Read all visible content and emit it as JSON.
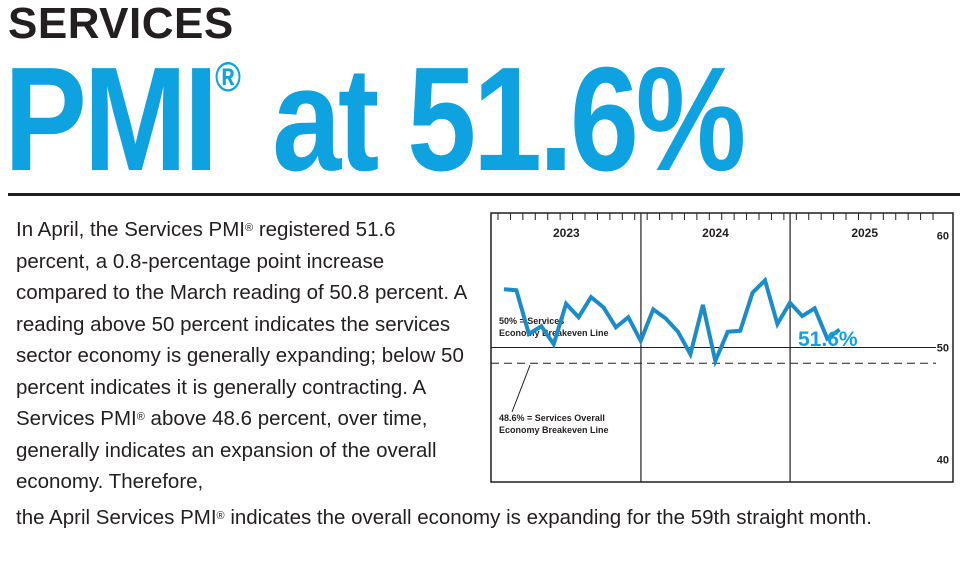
{
  "header": {
    "kicker": "SERVICES",
    "headline_main": "PMI",
    "headline_mark": "®",
    "headline_rest": " at 51.6%"
  },
  "body": {
    "p1_a": "In April, the Services PMI",
    "reg": "®",
    "p1_b": " registered 51.6 percent, a 0.8-percentage point increase compared to the March reading of 50.8 percent. A reading above 50 percent indicates the services sector economy is generally expanding; below 50 percent indicates it is generally contracting. A Services PMI",
    "p1_c": " above 48.6 percent, over time, generally indicates an expansion of the overall economy. Therefore,",
    "last_a": "the April Services PMI",
    "last_b": " indicates the overall economy is expanding for the 59th straight month."
  },
  "colors": {
    "accent": "#0ea2e0",
    "text": "#231f20"
  },
  "chart_data": {
    "type": "line",
    "x_start": "2023-01",
    "x_end": "2025-04",
    "year_labels": [
      "2023",
      "2024",
      "2025"
    ],
    "y_ticks": [
      "60",
      "50",
      "40"
    ],
    "ylim": [
      38,
      62
    ],
    "series": [
      {
        "values": [
          55.2,
          55.1,
          51.2,
          51.9,
          50.3,
          53.9,
          52.7,
          54.5,
          53.6,
          51.8,
          52.7,
          50.6,
          53.4,
          52.6,
          51.4,
          49.4,
          53.8,
          48.8,
          51.4,
          51.5,
          54.9,
          56.0,
          52.1,
          54.0,
          52.8,
          53.5,
          50.8,
          51.6
        ]
      }
    ],
    "reference_lines": [
      {
        "value": 50,
        "style": "solid",
        "label": "50% = Services Economy Breakeven Line",
        "label_line1": "50% = Services",
        "label_line2": "Economy Breakeven Line"
      },
      {
        "value": 48.6,
        "style": "dashed",
        "label": "48.6% = Services Overall Economy Breakeven Line",
        "label_line1": "48.6% = Services Overall",
        "label_line2": "Economy Breakeven Line"
      }
    ],
    "annotation": "51.6%",
    "line_color": "#1a8cc8",
    "legend": "none",
    "grid": false
  }
}
